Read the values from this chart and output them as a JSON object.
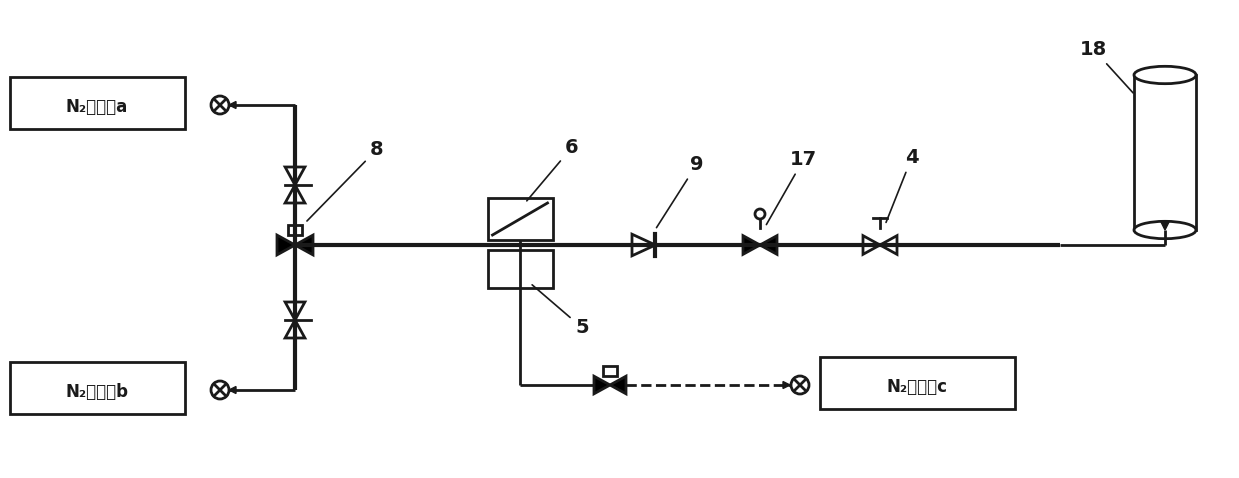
{
  "bg_color": "#ffffff",
  "line_color": "#1a1a1a",
  "lw": 2.0,
  "tlw": 3.0,
  "figsize": [
    12.39,
    4.78
  ],
  "dpi": 100,
  "labels": {
    "N2a": "N₂接入点a",
    "N2b": "N₂接入点b",
    "N2c": "N₂接入点c",
    "6": "6",
    "8": "8",
    "9": "9",
    "17": "17",
    "4": "4",
    "18": "18",
    "5": "5"
  }
}
